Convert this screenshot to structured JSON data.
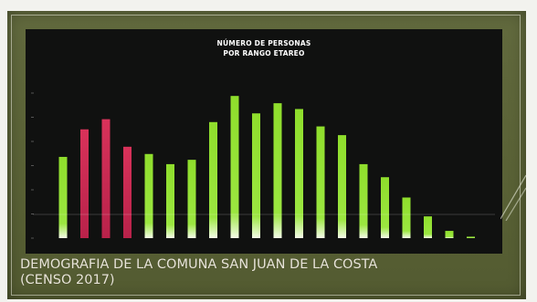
{
  "slide": {
    "caption_line1": "DEMOGRAFIA DE LA COMUNA SAN JUAN DE LA COSTA",
    "caption_line2": "(CENSO 2017)"
  },
  "colors": {
    "background": "#5c6438",
    "panel": "#101110",
    "bar_red": "#d8325a",
    "bar_green": "#8fde2c"
  },
  "chart_data": {
    "type": "bar",
    "title_line1": "NÚMERO DE PERSONAS",
    "title_line2": "POR RANGO ETAREO",
    "xlabel": "",
    "ylabel": "",
    "grid": false,
    "legend": "none",
    "ylim": [
      0,
      100
    ],
    "values": [
      56,
      75,
      82,
      63,
      58,
      51,
      54,
      80,
      98,
      86,
      93,
      89,
      77,
      71,
      51,
      42,
      28,
      15,
      5,
      1
    ],
    "bar_colors": [
      "green",
      "red",
      "red",
      "red",
      "green",
      "green",
      "green",
      "green",
      "green",
      "green",
      "green",
      "green",
      "green",
      "green",
      "green",
      "green",
      "green",
      "green",
      "green",
      "green"
    ]
  }
}
